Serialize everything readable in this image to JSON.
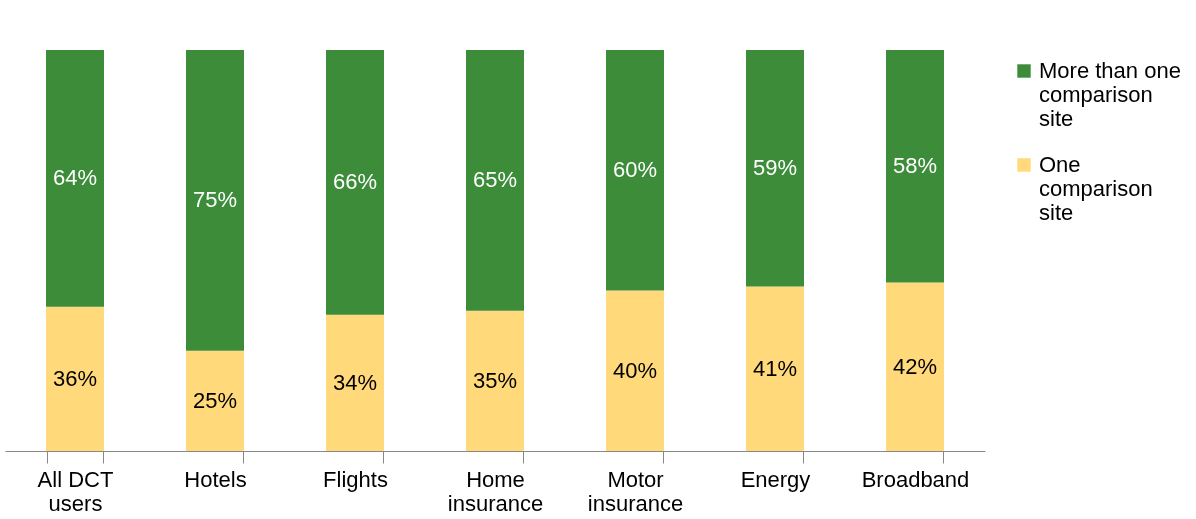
{
  "chart_data": {
    "type": "bar",
    "stacked": true,
    "categories": [
      "All DCT users",
      "Hotels",
      "Flights",
      "Home insurance",
      "Motor insurance",
      "Energy",
      "Broadband"
    ],
    "series": [
      {
        "name": "One comparison site",
        "color": "#ffd97a",
        "values": [
          36,
          25,
          34,
          35,
          40,
          41,
          42
        ],
        "value_labels": [
          "36%",
          "25%",
          "34%",
          "35%",
          "40%",
          "41%",
          "42%"
        ]
      },
      {
        "name": "More than one comparison site",
        "color": "#3c8c3a",
        "values": [
          64,
          75,
          66,
          65,
          60,
          59,
          58
        ],
        "value_labels": [
          "64%",
          "75%",
          "66%",
          "65%",
          "60%",
          "59%",
          "58%"
        ]
      }
    ],
    "tick_labels": "x",
    "legend": "right"
  }
}
